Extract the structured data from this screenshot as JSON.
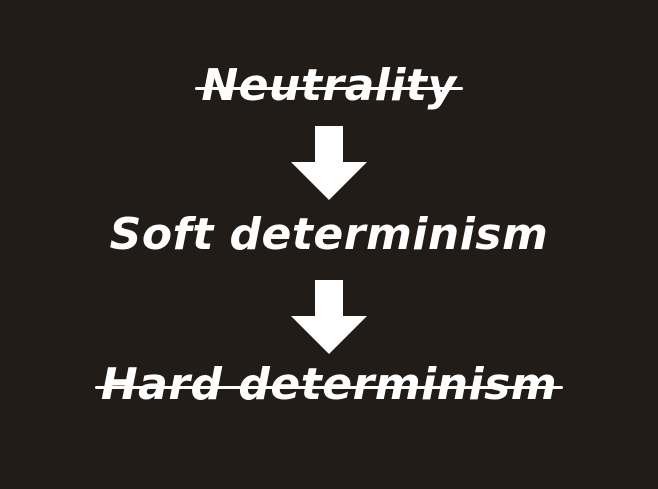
{
  "diagram": {
    "colors": {
      "background": "#221c19",
      "foreground": "#ffffff"
    },
    "terms": [
      {
        "label": "Neutrality",
        "struck_through": true
      },
      {
        "label": "Soft determinism",
        "struck_through": false
      },
      {
        "label": "Hard determinism",
        "struck_through": true
      }
    ],
    "arrows": [
      {
        "from": "Neutrality",
        "to": "Soft determinism",
        "direction": "down"
      },
      {
        "from": "Soft determinism",
        "to": "Hard determinism",
        "direction": "down"
      }
    ]
  }
}
